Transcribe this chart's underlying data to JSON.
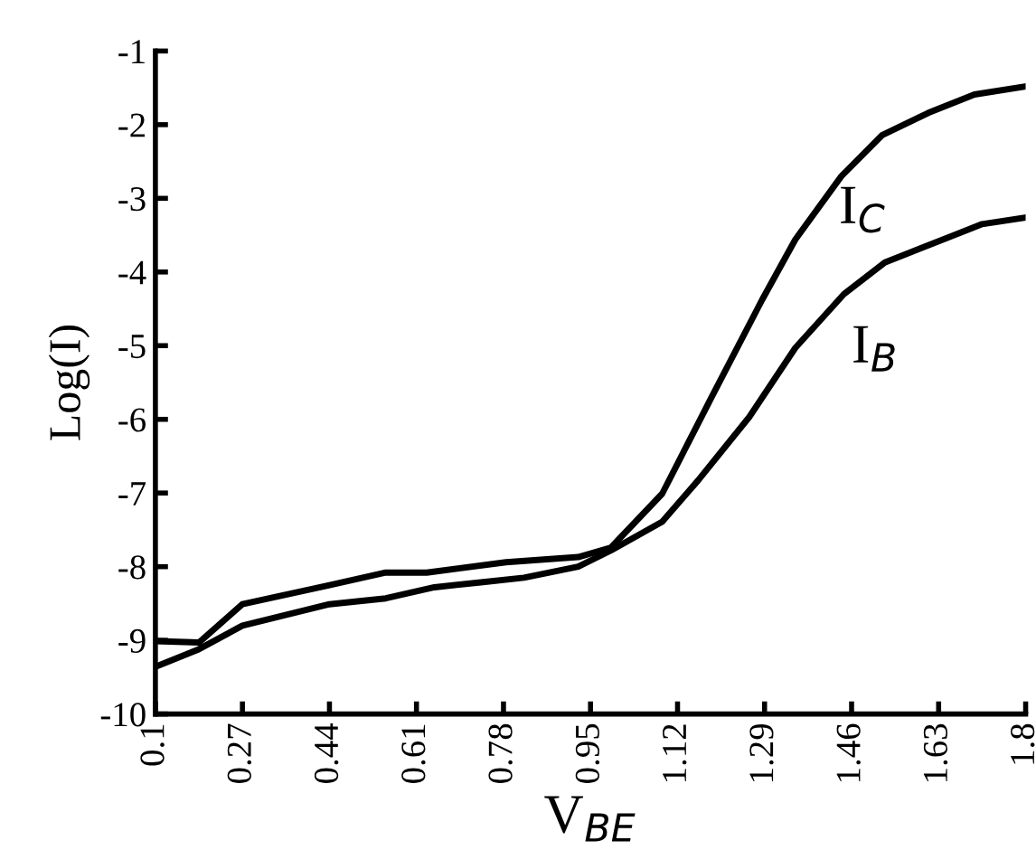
{
  "chart_data": {
    "type": "line",
    "xlabel": "V$_{BE}$",
    "ylabel": "Log(I)",
    "xlim": [
      0.1,
      1.8
    ],
    "ylim": [
      -10,
      -1
    ],
    "xticks": [
      0.1,
      0.27,
      0.44,
      0.61,
      0.78,
      0.95,
      1.12,
      1.29,
      1.46,
      1.63,
      1.8
    ],
    "yticks": [
      -10,
      -9,
      -8,
      -7,
      -6,
      -5,
      -4,
      -3,
      -2,
      -1
    ],
    "grid": false,
    "legend": false,
    "marker": "none",
    "line_style": "solid",
    "series": [
      {
        "name": "I$_{C}$",
        "color": "#000000",
        "x": [
          0.1,
          0.185,
          0.27,
          0.44,
          0.55,
          0.63,
          0.785,
          0.926,
          0.99,
          1.09,
          1.185,
          1.285,
          1.35,
          1.44,
          1.52,
          1.61,
          1.7,
          1.8
        ],
        "values": [
          -9.01,
          -9.03,
          -8.51,
          -8.25,
          -8.08,
          -8.08,
          -7.94,
          -7.87,
          -7.74,
          -7.01,
          -5.72,
          -4.38,
          -3.56,
          -2.7,
          -2.14,
          -1.84,
          -1.59,
          -1.48
        ]
      },
      {
        "name": "I$_{B}$",
        "color": "#000000",
        "x": [
          0.1,
          0.185,
          0.27,
          0.44,
          0.55,
          0.645,
          0.74,
          0.82,
          0.926,
          0.99,
          1.09,
          1.16,
          1.26,
          1.35,
          1.445,
          1.525,
          1.62,
          1.715,
          1.8
        ],
        "values": [
          -9.36,
          -9.12,
          -8.8,
          -8.51,
          -8.43,
          -8.28,
          -8.21,
          -8.15,
          -8.0,
          -7.78,
          -7.39,
          -6.83,
          -5.97,
          -5.03,
          -4.3,
          -3.87,
          -3.61,
          -3.35,
          -3.26
        ]
      }
    ]
  }
}
